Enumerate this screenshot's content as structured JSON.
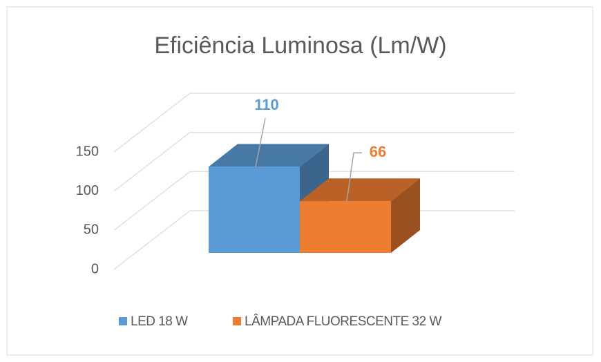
{
  "chart_data": {
    "type": "bar3d",
    "title": "Eficiência Luminosa (Lm/W)",
    "series": [
      {
        "name": "LED 18 W",
        "color": "#5b9bd5",
        "values": [
          110
        ]
      },
      {
        "name": "LÂMPADA FLUORESCENTE 32 W",
        "color": "#ed7d31",
        "values": [
          66
        ]
      }
    ],
    "ylim": [
      0,
      150
    ],
    "yticks": [
      0,
      50,
      100,
      150
    ],
    "grid": true,
    "legend": "bottom"
  }
}
